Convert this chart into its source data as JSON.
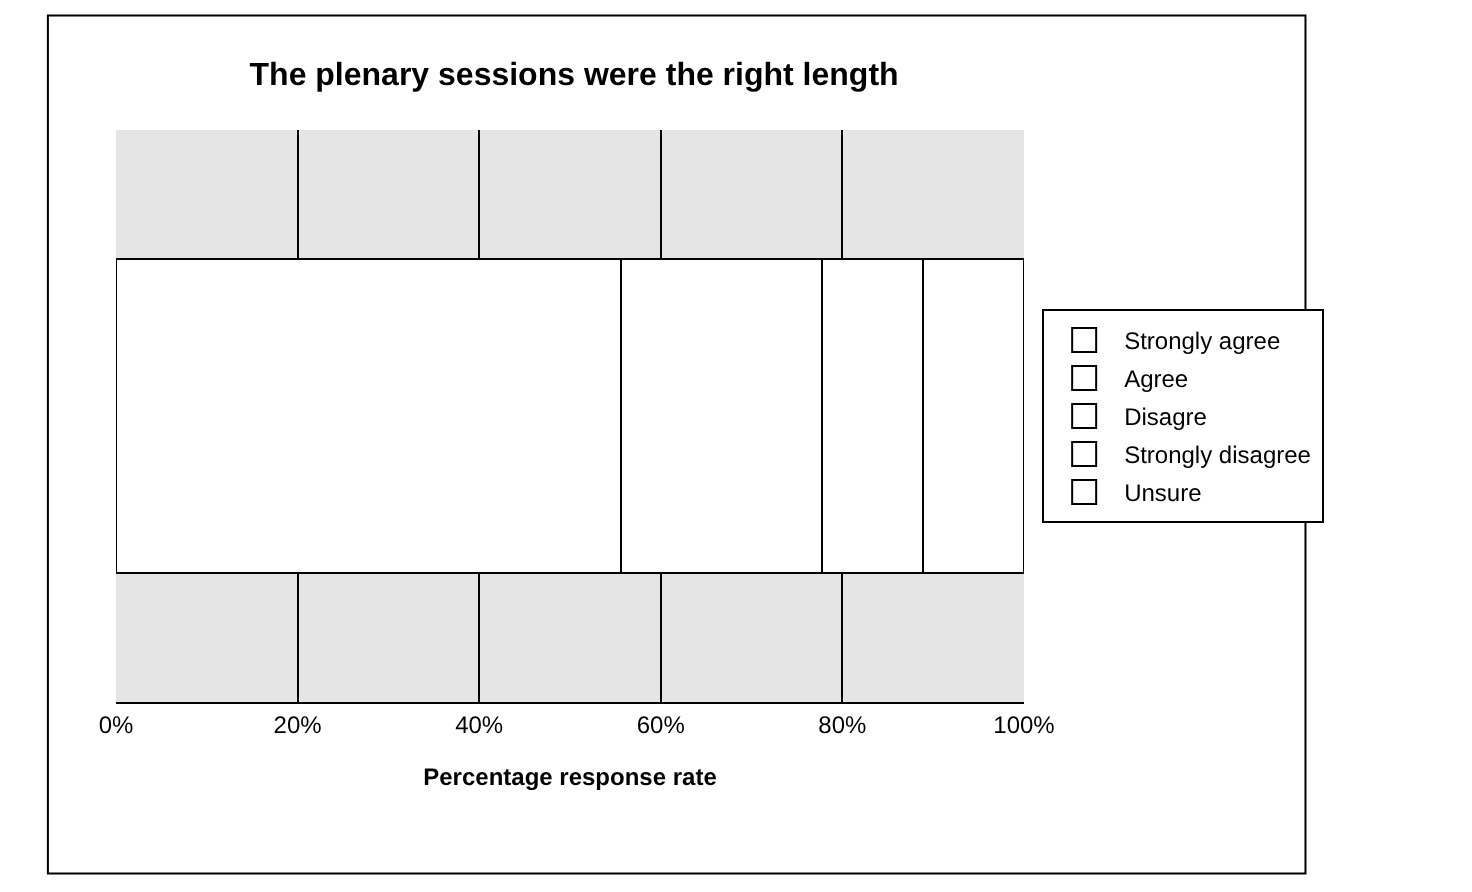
{
  "chart_data": {
    "type": "bar",
    "title": "The plenary sessions were the right length",
    "xlabel": "Percentage response rate",
    "categories": [
      null
    ],
    "orientation": "horizontal",
    "stacked": true,
    "series": [
      {
        "name": "Strongly agree",
        "color": "#ffffff",
        "values": [
          0
        ]
      },
      {
        "name": "Agree",
        "color": "#ffffff",
        "values": [
          55.6
        ]
      },
      {
        "name": "Disagre",
        "color": "#ffffff",
        "values": [
          22.2
        ]
      },
      {
        "name": "Strongly disagree",
        "color": "#ffffff",
        "values": [
          11.1
        ]
      },
      {
        "name": "Unsure",
        "color": "#ffffff",
        "values": [
          11.1
        ]
      }
    ],
    "xlim": [
      0,
      100
    ],
    "xticks": [
      {
        "value": 0,
        "label": "0%"
      },
      {
        "value": 20,
        "label": "20%"
      },
      {
        "value": 40,
        "label": "40%"
      },
      {
        "value": 60,
        "label": "60%"
      },
      {
        "value": 80,
        "label": "80%"
      },
      {
        "value": 100,
        "label": "100%"
      }
    ],
    "grid": "x",
    "legend": "right"
  }
}
